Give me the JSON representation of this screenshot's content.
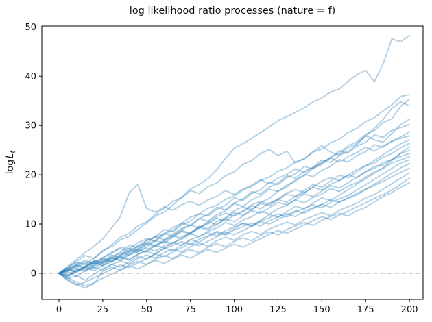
{
  "figure": {
    "title": "log likelihood ratio processes (nature = f)",
    "ylabel_prefix": "log",
    "ylabel_var": "L",
    "ylabel_sub": "t",
    "background_color": "#ffffff",
    "spine_color": "#000000"
  },
  "chart_data": {
    "type": "line",
    "title": "log likelihood ratio processes (nature = f)",
    "xlabel": "",
    "ylabel": "log L_t",
    "xlim": [
      -9.8,
      207.8
    ],
    "ylim": [
      -5.3,
      50.2
    ],
    "x_ticks": [
      0,
      25,
      50,
      75,
      100,
      125,
      150,
      175,
      200
    ],
    "y_ticks": [
      0,
      10,
      20,
      30,
      40,
      50
    ],
    "grid": false,
    "legend_position": "none",
    "line_color": "#1f77b4",
    "line_alpha": 0.35,
    "line_width": 1.9,
    "zero_line": {
      "y": 0,
      "color": "#b3b3b3",
      "dash": [
        6.5,
        4
      ],
      "width": 1.4
    },
    "x_step": 5,
    "series": [
      {
        "name": "path-01",
        "values": [
          0,
          1.3,
          2.2,
          1.8,
          3.1,
          4.6,
          5.4,
          6.8,
          7.5,
          8.9,
          10.2,
          11.6,
          12.4,
          13.9,
          15.4,
          17.1,
          18.0,
          19.2,
          21.0,
          23.3,
          25.4,
          26.3,
          27.4,
          28.6,
          29.7,
          31.0,
          31.8,
          32.7,
          33.6,
          34.8,
          35.6,
          36.8,
          37.4,
          39.0,
          40.3,
          41.2,
          38.9,
          42.5,
          47.6,
          47.0,
          48.3
        ]
      },
      {
        "name": "path-02",
        "values": [
          0,
          0.9,
          1.7,
          1.2,
          2.4,
          3.0,
          2.5,
          3.8,
          4.4,
          5.6,
          6.1,
          7.4,
          8.0,
          9.3,
          10.1,
          11.4,
          12.0,
          13.2,
          13.8,
          15.0,
          15.7,
          16.9,
          17.6,
          18.8,
          19.5,
          20.7,
          21.4,
          22.6,
          23.3,
          24.6,
          25.2,
          26.5,
          27.2,
          28.6,
          29.4,
          30.8,
          31.6,
          33.0,
          34.2,
          35.9,
          36.3
        ]
      },
      {
        "name": "path-03",
        "values": [
          0,
          -0.4,
          0.6,
          1.4,
          1.0,
          2.2,
          3.1,
          2.7,
          4.0,
          4.8,
          4.3,
          5.7,
          6.5,
          6.0,
          7.4,
          8.2,
          9.6,
          9.1,
          10.5,
          11.3,
          12.7,
          13.5,
          12.9,
          14.4,
          15.2,
          16.7,
          17.5,
          19.0,
          19.8,
          21.3,
          22.1,
          23.6,
          24.4,
          25.9,
          26.7,
          28.2,
          29.0,
          30.6,
          31.4,
          33.9,
          35.4
        ]
      },
      {
        "name": "path-04",
        "values": [
          0,
          0.5,
          1.6,
          2.3,
          1.9,
          3.2,
          4.0,
          5.3,
          4.9,
          6.2,
          7.0,
          6.5,
          7.9,
          8.7,
          10.2,
          9.7,
          11.1,
          11.9,
          13.4,
          12.9,
          14.3,
          15.1,
          16.6,
          16.1,
          17.5,
          18.3,
          19.8,
          19.3,
          20.7,
          21.5,
          23.0,
          22.5,
          23.9,
          24.7,
          26.2,
          27.8,
          29.5,
          31.2,
          33.5,
          34.8,
          34.0
        ]
      },
      {
        "name": "path-05",
        "values": [
          0,
          1.1,
          2.4,
          3.6,
          3.0,
          4.4,
          5.8,
          7.3,
          8.1,
          9.6,
          10.4,
          12.0,
          13.2,
          14.6,
          15.3,
          16.8,
          16.2,
          17.6,
          18.3,
          19.8,
          20.6,
          22.1,
          22.9,
          24.3,
          25.1,
          23.9,
          24.8,
          22.4,
          23.2,
          24.7,
          25.9,
          24.6,
          24.0,
          25.5,
          26.3,
          27.9,
          27.1,
          26.6,
          28.4,
          30.2,
          31.3
        ]
      },
      {
        "name": "path-06",
        "values": [
          0,
          -0.6,
          0.5,
          1.3,
          2.6,
          2.1,
          3.4,
          4.2,
          5.7,
          5.2,
          6.6,
          7.4,
          8.9,
          8.4,
          9.8,
          10.6,
          12.1,
          11.6,
          13.0,
          13.8,
          15.3,
          14.8,
          16.2,
          17.0,
          18.5,
          18.0,
          19.4,
          20.2,
          21.7,
          21.2,
          22.6,
          23.4,
          24.9,
          24.4,
          25.8,
          26.6,
          28.1,
          27.6,
          29.0,
          29.6,
          30.2
        ]
      },
      {
        "name": "path-07",
        "values": [
          0,
          0.8,
          0.2,
          1.5,
          2.2,
          1.7,
          3.0,
          3.7,
          5.1,
          4.6,
          5.9,
          6.7,
          8.1,
          7.6,
          8.9,
          9.7,
          11.1,
          10.6,
          11.9,
          12.7,
          14.1,
          13.6,
          14.9,
          15.7,
          17.1,
          16.6,
          17.9,
          18.7,
          20.1,
          19.6,
          20.9,
          21.7,
          23.1,
          22.6,
          23.9,
          24.7,
          26.1,
          25.6,
          26.9,
          27.7,
          28.7
        ]
      },
      {
        "name": "path-08",
        "values": [
          0,
          1.4,
          2.8,
          4.2,
          5.5,
          7.0,
          9.2,
          11.5,
          16.3,
          18.0,
          13.2,
          12.4,
          13.5,
          12.8,
          13.9,
          14.6,
          13.8,
          14.9,
          15.6,
          16.8,
          16.0,
          17.1,
          17.9,
          19.0,
          18.2,
          19.3,
          20.1,
          21.2,
          20.4,
          21.5,
          22.3,
          23.4,
          22.6,
          23.7,
          24.5,
          25.6,
          24.8,
          25.9,
          26.7,
          27.4,
          27.9
        ]
      },
      {
        "name": "path-09",
        "values": [
          0,
          -0.3,
          0.9,
          0.4,
          1.6,
          2.8,
          2.3,
          3.5,
          4.7,
          4.2,
          5.4,
          6.6,
          6.1,
          7.3,
          8.5,
          8.0,
          9.2,
          10.4,
          9.9,
          11.1,
          12.3,
          11.8,
          13.0,
          14.2,
          13.7,
          14.9,
          16.1,
          15.6,
          16.8,
          18.0,
          17.5,
          18.7,
          19.9,
          19.4,
          20.6,
          21.8,
          22.9,
          24.1,
          25.2,
          26.3,
          27.1
        ]
      },
      {
        "name": "path-10",
        "values": [
          0,
          0.7,
          1.9,
          2.6,
          2.0,
          3.1,
          4.3,
          5.0,
          4.4,
          5.5,
          6.7,
          7.4,
          6.8,
          7.9,
          9.1,
          9.8,
          9.2,
          10.3,
          11.5,
          12.2,
          11.6,
          12.7,
          13.9,
          14.6,
          14.0,
          15.1,
          16.3,
          17.0,
          16.4,
          17.5,
          18.7,
          19.4,
          18.8,
          19.9,
          21.1,
          21.8,
          22.4,
          23.6,
          24.3,
          25.5,
          26.4
        ]
      },
      {
        "name": "path-11",
        "values": [
          0,
          -1.1,
          -0.5,
          -1.4,
          -0.2,
          0.9,
          1.8,
          1.2,
          2.3,
          3.4,
          2.9,
          4.0,
          5.1,
          4.6,
          5.7,
          6.8,
          6.3,
          7.4,
          8.5,
          8.0,
          9.1,
          10.2,
          9.7,
          10.8,
          11.9,
          11.4,
          12.5,
          13.6,
          13.1,
          14.2,
          15.3,
          14.8,
          15.9,
          17.0,
          18.1,
          19.2,
          20.3,
          21.4,
          22.9,
          24.4,
          25.7
        ]
      },
      {
        "name": "path-12",
        "values": [
          0,
          0.4,
          1.1,
          0.6,
          1.8,
          2.5,
          3.7,
          3.1,
          4.3,
          5.0,
          6.2,
          5.6,
          6.8,
          7.5,
          8.7,
          8.1,
          9.3,
          10.0,
          11.2,
          10.6,
          11.8,
          12.5,
          13.7,
          13.1,
          14.3,
          15.0,
          14.4,
          15.6,
          16.3,
          17.5,
          16.9,
          18.1,
          18.8,
          20.0,
          19.4,
          20.6,
          21.3,
          22.5,
          23.1,
          24.3,
          25.0
        ]
      },
      {
        "name": "path-13",
        "values": [
          0,
          1.0,
          0.3,
          1.4,
          2.5,
          2.0,
          3.1,
          4.2,
          3.7,
          4.8,
          5.9,
          5.4,
          6.5,
          7.6,
          7.1,
          8.2,
          9.3,
          8.8,
          9.9,
          11.0,
          10.5,
          11.6,
          12.7,
          12.2,
          13.3,
          14.4,
          13.9,
          15.0,
          16.1,
          15.6,
          16.7,
          17.8,
          17.3,
          18.4,
          19.5,
          20.6,
          21.7,
          22.0,
          23.1,
          23.7,
          24.3
        ]
      },
      {
        "name": "path-14",
        "values": [
          0,
          -0.7,
          0.4,
          1.1,
          0.5,
          1.6,
          2.3,
          3.4,
          2.8,
          3.9,
          4.6,
          5.7,
          5.1,
          6.2,
          6.9,
          8.0,
          7.4,
          8.5,
          9.2,
          10.3,
          9.7,
          10.8,
          11.5,
          12.6,
          12.0,
          13.1,
          13.8,
          14.9,
          14.3,
          15.4,
          16.1,
          17.2,
          16.6,
          17.7,
          18.4,
          19.5,
          20.6,
          21.3,
          22.4,
          23.0,
          23.7
        ]
      },
      {
        "name": "path-15",
        "values": [
          0,
          0.6,
          1.3,
          2.0,
          1.4,
          2.5,
          3.2,
          2.6,
          3.7,
          4.4,
          5.1,
          4.5,
          5.6,
          6.3,
          5.7,
          6.8,
          7.5,
          8.2,
          7.6,
          8.7,
          9.4,
          10.1,
          9.5,
          10.6,
          11.3,
          12.0,
          11.4,
          12.5,
          13.2,
          13.9,
          13.3,
          14.4,
          15.1,
          15.8,
          16.9,
          18.0,
          19.1,
          20.2,
          21.3,
          22.4,
          23.0
        ]
      },
      {
        "name": "path-16",
        "values": [
          0,
          0.9,
          1.6,
          1.0,
          2.1,
          1.5,
          2.6,
          3.3,
          2.7,
          3.8,
          4.5,
          3.9,
          5.0,
          5.7,
          6.4,
          5.8,
          6.9,
          7.6,
          8.3,
          7.7,
          8.8,
          9.5,
          10.2,
          9.6,
          10.7,
          11.4,
          12.1,
          11.5,
          12.6,
          13.3,
          14.0,
          13.4,
          14.5,
          15.2,
          15.9,
          17.0,
          18.1,
          19.2,
          20.3,
          21.4,
          22.3
        ]
      },
      {
        "name": "path-17",
        "values": [
          0,
          -1.5,
          -2.4,
          -1.8,
          -0.9,
          -0.1,
          0.8,
          1.7,
          1.2,
          2.1,
          3.0,
          3.9,
          3.4,
          4.3,
          5.2,
          6.1,
          5.6,
          6.5,
          7.4,
          8.3,
          7.8,
          8.7,
          9.6,
          10.5,
          10.0,
          10.9,
          11.8,
          12.7,
          12.2,
          13.1,
          14.0,
          14.9,
          14.4,
          15.3,
          16.2,
          17.1,
          17.8,
          18.7,
          19.6,
          20.5,
          21.3
        ]
      },
      {
        "name": "path-18",
        "values": [
          0,
          0.3,
          -0.6,
          0.5,
          1.2,
          0.7,
          1.8,
          2.5,
          1.9,
          3.0,
          3.7,
          3.1,
          4.2,
          4.9,
          4.3,
          5.4,
          6.1,
          5.5,
          6.6,
          7.3,
          6.7,
          7.8,
          8.5,
          7.9,
          9.0,
          9.7,
          10.4,
          9.8,
          10.9,
          11.6,
          12.3,
          11.7,
          12.8,
          13.5,
          14.2,
          15.3,
          16.0,
          17.1,
          18.2,
          19.3,
          20.4
        ]
      },
      {
        "name": "path-19",
        "values": [
          0,
          -0.9,
          -1.8,
          -2.6,
          -1.9,
          -1.0,
          -0.2,
          0.7,
          1.5,
          0.9,
          1.8,
          2.6,
          2.0,
          2.9,
          3.7,
          3.1,
          4.0,
          4.8,
          4.2,
          5.1,
          5.9,
          5.3,
          6.2,
          7.0,
          7.9,
          8.7,
          8.1,
          9.0,
          9.8,
          10.7,
          11.5,
          10.9,
          11.8,
          12.6,
          13.5,
          14.3,
          15.2,
          16.0,
          16.9,
          18.1,
          19.3
        ]
      },
      {
        "name": "path-20",
        "values": [
          0,
          -1.3,
          -2.2,
          -3.0,
          -2.1,
          0.4,
          1.2,
          0.6,
          1.7,
          2.4,
          1.8,
          2.9,
          3.6,
          3.0,
          4.1,
          4.8,
          4.2,
          5.3,
          6.0,
          5.4,
          6.5,
          7.2,
          6.6,
          7.7,
          8.4,
          7.8,
          8.9,
          9.6,
          10.3,
          9.7,
          10.8,
          11.5,
          12.2,
          11.6,
          12.7,
          13.4,
          14.5,
          15.6,
          16.4,
          17.5,
          18.4
        ]
      }
    ]
  }
}
